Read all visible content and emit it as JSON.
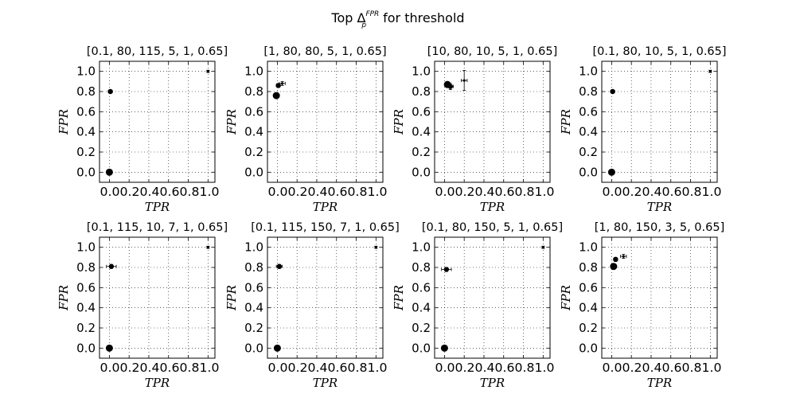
{
  "figure": {
    "suptitle_main": "Top Δ",
    "suptitle_sup": "FPR",
    "suptitle_sub": "p",
    "suptitle_rest": " for threshold"
  },
  "chart_data": [
    {
      "type": "scatter",
      "title": "[0.1, 80, 115, 5, 1, 0.65]",
      "xlabel": "TPR",
      "ylabel": "FPR",
      "xlim": [
        -0.1,
        1.07
      ],
      "ylim": [
        -0.1,
        1.1
      ],
      "xticks": [
        "0.0",
        "0.2",
        "0.4",
        "0.6",
        "0.8",
        "1.0"
      ],
      "xticks_display": "0.00.20.40.60.81.0",
      "yticks": [
        "0.0",
        "0.2",
        "0.4",
        "0.6",
        "0.8",
        "1.0"
      ],
      "grid": true,
      "points": [
        {
          "x": 0.0,
          "y": 0.0,
          "size": "large"
        },
        {
          "x": 0.01,
          "y": 0.8,
          "size": "small",
          "xerr": 0.02,
          "yerr": 0.01
        },
        {
          "x": 1.0,
          "y": 1.0,
          "size": "tiny",
          "xerr": 0.01,
          "yerr": 0.01
        }
      ]
    },
    {
      "type": "scatter",
      "title": "[1, 80, 80, 5, 1, 0.65]",
      "xlabel": "TPR",
      "ylabel": "FPR",
      "xlim": [
        -0.1,
        1.07
      ],
      "ylim": [
        -0.1,
        1.1
      ],
      "xticks": [
        "0.0",
        "0.2",
        "0.4",
        "0.6",
        "0.8",
        "1.0"
      ],
      "xticks_display": "0.00.20.40.60.81.0",
      "yticks": [
        "0.0",
        "0.2",
        "0.4",
        "0.6",
        "0.8",
        "1.0"
      ],
      "grid": true,
      "points": [
        {
          "x": -0.01,
          "y": 0.76,
          "size": "large"
        },
        {
          "x": 0.01,
          "y": 0.86,
          "size": "small",
          "xerr": 0.02,
          "yerr": 0.02
        },
        {
          "x": 0.05,
          "y": 0.88,
          "size": "tiny",
          "xerr": 0.03,
          "yerr": 0.02
        }
      ]
    },
    {
      "type": "scatter",
      "title": "[10, 80, 10, 5, 1, 0.65]",
      "xlabel": "TPR",
      "ylabel": "FPR",
      "xlim": [
        -0.1,
        1.07
      ],
      "ylim": [
        -0.1,
        1.1
      ],
      "xticks": [
        "0.0",
        "0.2",
        "0.4",
        "0.6",
        "0.8",
        "1.0"
      ],
      "xticks_display": "0.00.20.40.60.81.0",
      "yticks": [
        "0.0",
        "0.2",
        "0.4",
        "0.6",
        "0.8",
        "1.0"
      ],
      "grid": true,
      "points": [
        {
          "x": 0.03,
          "y": 0.87,
          "size": "large"
        },
        {
          "x": 0.06,
          "y": 0.85,
          "size": "small",
          "xerr": 0.03,
          "yerr": 0.03
        },
        {
          "x": 0.2,
          "y": 0.91,
          "size": "tiny",
          "xerr": 0.03,
          "yerr": 0.1
        }
      ]
    },
    {
      "type": "scatter",
      "title": "[0.1, 80, 10, 5, 1, 0.65]",
      "xlabel": "TPR",
      "ylabel": "FPR",
      "xlim": [
        -0.1,
        1.07
      ],
      "ylim": [
        -0.1,
        1.1
      ],
      "xticks": [
        "0.0",
        "0.2",
        "0.4",
        "0.6",
        "0.8",
        "1.0"
      ],
      "xticks_display": "0.00.20.40.60.81.0",
      "yticks": [
        "0.0",
        "0.2",
        "0.4",
        "0.6",
        "0.8",
        "1.0"
      ],
      "grid": true,
      "points": [
        {
          "x": 0.0,
          "y": 0.0,
          "size": "large"
        },
        {
          "x": 0.01,
          "y": 0.8,
          "size": "small",
          "xerr": 0.02,
          "yerr": 0.01
        },
        {
          "x": 1.0,
          "y": 1.0,
          "size": "tiny",
          "xerr": 0.01,
          "yerr": 0.01
        }
      ]
    },
    {
      "type": "scatter",
      "title": "[0.1, 115, 10, 7, 1, 0.65]",
      "xlabel": "TPR",
      "ylabel": "FPR",
      "xlim": [
        -0.1,
        1.07
      ],
      "ylim": [
        -0.1,
        1.1
      ],
      "xticks": [
        "0.0",
        "0.2",
        "0.4",
        "0.6",
        "0.8",
        "1.0"
      ],
      "xticks_display": "0.00.20.40.60.81.0",
      "yticks": [
        "0.0",
        "0.2",
        "0.4",
        "0.6",
        "0.8",
        "1.0"
      ],
      "grid": true,
      "points": [
        {
          "x": 0.0,
          "y": 0.0,
          "size": "large"
        },
        {
          "x": 0.02,
          "y": 0.81,
          "size": "small",
          "xerr": 0.05,
          "yerr": 0.02
        },
        {
          "x": 1.0,
          "y": 1.0,
          "size": "tiny",
          "xerr": 0.01,
          "yerr": 0.01
        }
      ]
    },
    {
      "type": "scatter",
      "title": "[0.1, 115, 150, 7, 1, 0.65]",
      "xlabel": "TPR",
      "ylabel": "FPR",
      "xlim": [
        -0.1,
        1.07
      ],
      "ylim": [
        -0.1,
        1.1
      ],
      "xticks": [
        "0.0",
        "0.2",
        "0.4",
        "0.6",
        "0.8",
        "1.0"
      ],
      "xticks_display": "0.00.20.40.60.81.0",
      "yticks": [
        "0.0",
        "0.2",
        "0.4",
        "0.6",
        "0.8",
        "1.0"
      ],
      "grid": true,
      "points": [
        {
          "x": 0.0,
          "y": 0.0,
          "size": "large"
        },
        {
          "x": 0.02,
          "y": 0.81,
          "size": "small",
          "xerr": 0.03,
          "yerr": 0.02
        },
        {
          "x": 1.0,
          "y": 1.0,
          "size": "tiny",
          "xerr": 0.01,
          "yerr": 0.01
        }
      ]
    },
    {
      "type": "scatter",
      "title": "[0.1, 80, 150, 5, 1, 0.65]",
      "xlabel": "TPR",
      "ylabel": "FPR",
      "xlim": [
        -0.1,
        1.07
      ],
      "ylim": [
        -0.1,
        1.1
      ],
      "xticks": [
        "0.0",
        "0.2",
        "0.4",
        "0.6",
        "0.8",
        "1.0"
      ],
      "xticks_display": "0.00.20.40.60.81.0",
      "yticks": [
        "0.0",
        "0.2",
        "0.4",
        "0.6",
        "0.8",
        "1.0"
      ],
      "grid": true,
      "points": [
        {
          "x": 0.0,
          "y": 0.0,
          "size": "large"
        },
        {
          "x": 0.02,
          "y": 0.78,
          "size": "small",
          "xerr": 0.05,
          "yerr": 0.02
        },
        {
          "x": 1.0,
          "y": 1.0,
          "size": "tiny",
          "xerr": 0.01,
          "yerr": 0.01
        }
      ]
    },
    {
      "type": "scatter",
      "title": "[1, 80, 150, 3, 5, 0.65]",
      "xlabel": "TPR",
      "ylabel": "FPR",
      "xlim": [
        -0.1,
        1.07
      ],
      "ylim": [
        -0.1,
        1.1
      ],
      "xticks": [
        "0.0",
        "0.2",
        "0.4",
        "0.6",
        "0.8",
        "1.0"
      ],
      "xticks_display": "0.00.20.40.60.81.0",
      "yticks": [
        "0.0",
        "0.2",
        "0.4",
        "0.6",
        "0.8",
        "1.0"
      ],
      "grid": true,
      "points": [
        {
          "x": 0.02,
          "y": 0.81,
          "size": "large"
        },
        {
          "x": 0.04,
          "y": 0.88,
          "size": "small",
          "xerr": 0.02,
          "yerr": 0.02
        },
        {
          "x": 0.12,
          "y": 0.91,
          "size": "tiny",
          "xerr": 0.03,
          "yerr": 0.02
        }
      ]
    }
  ]
}
